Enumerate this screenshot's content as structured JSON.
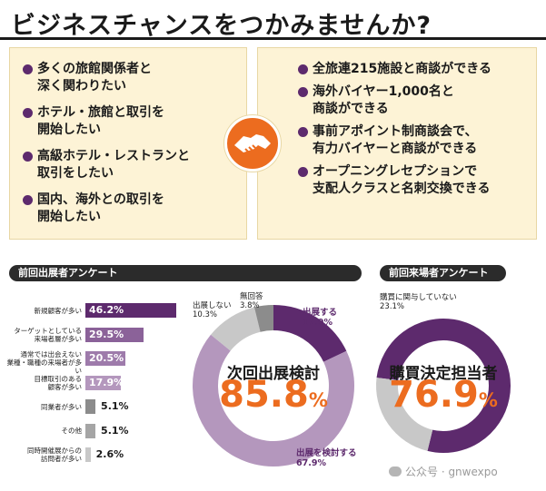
{
  "title": "ビジネスチャンスをつかみませんか?",
  "left_panel": [
    [
      "多くの旅館関係者と",
      "深く関わりたい"
    ],
    [
      "ホテル・旅館と取引を",
      "開始したい"
    ],
    [
      "高級ホテル・レストランと",
      "取引をしたい"
    ],
    [
      "国内、海外との取引を",
      "開始したい"
    ]
  ],
  "right_panel": [
    [
      "全旅連215施設と商談ができる"
    ],
    [
      "海外バイヤー1,000名と",
      "商談ができる"
    ],
    [
      "事前アポイント制商談会で、",
      "有力バイヤーと商談ができる"
    ],
    [
      "オープニングレセプションで",
      "支配人クラスと名刺交換できる"
    ]
  ],
  "icons": {
    "center": "handshake-icon",
    "bullet": "dot-icon",
    "watermark": "wechat-icon"
  },
  "colors": {
    "purple": "#5d2a6d",
    "mid_purple": "#8b6299",
    "light_purple": "#b497bd",
    "orange": "#ec6c1f",
    "gray": "#c8c8c8",
    "dark_gray": "#8c8c8c",
    "panel": "#fdf3d6"
  },
  "exhibitor_survey_heading": "前回出展者アンケート",
  "visitor_survey_heading": "前回来場者アンケート",
  "chart_data": [
    {
      "type": "bar",
      "orientation": "horizontal",
      "categories": [
        "新規顧客が多い",
        "ターゲットとしている来場者層が多い",
        "通常では出会えない業種・職種の来場者が多い",
        "目標取引のある顧客が多い",
        "同業者が多い",
        "その他",
        "同時開催展からの訪問者が多い"
      ],
      "category_lines": [
        [
          "新規顧客が多い"
        ],
        [
          "ターゲットとしている",
          "来場者層が多い"
        ],
        [
          "通常では出会えない",
          "業種・職種の来場者が多い"
        ],
        [
          "目標取引のある",
          "顧客が多い"
        ],
        [
          "同業者が多い"
        ],
        [
          "その他"
        ],
        [
          "同時開催展からの",
          "訪問者が多い"
        ]
      ],
      "values": [
        46.2,
        29.5,
        20.5,
        17.9,
        5.1,
        5.1,
        2.6
      ],
      "value_labels": [
        "46.2%",
        "29.5%",
        "20.5%",
        "17.9%",
        "5.1%",
        "5.1%",
        "2.6%"
      ],
      "bar_colors": [
        "#5d2a6d",
        "#8b6299",
        "#9e7bab",
        "#b497bd",
        "#8c8c8c",
        "#a5a5a5",
        "#c8c8c8"
      ],
      "xlim": [
        0,
        60
      ]
    },
    {
      "type": "pie",
      "donut": true,
      "slices": [
        {
          "label": "出展する",
          "value": 17.9,
          "value_label": "17.9%",
          "color": "#5d2a6d"
        },
        {
          "label": "出展を検討する",
          "value": 67.9,
          "value_label": "67.9%",
          "color": "#b497bd"
        },
        {
          "label": "出展しない",
          "value": 10.3,
          "value_label": "10.3%",
          "color": "#c8c8c8"
        },
        {
          "label": "無回答",
          "value": 3.8,
          "value_label": "3.8%",
          "color": "#8c8c8c"
        }
      ],
      "center_caption": "次回出展検討",
      "center_value": "85.8",
      "center_unit": "%"
    },
    {
      "type": "pie",
      "donut": true,
      "slices": [
        {
          "label": "購買決定担当者",
          "value": 76.9,
          "color": "#5d2a6d"
        },
        {
          "label": "購買に関与していない",
          "value": 23.1,
          "value_label": "23.1%",
          "color": "#c8c8c8"
        }
      ],
      "center_caption": "購買決定担当者",
      "center_value": "76.9",
      "center_unit": "%"
    }
  ],
  "watermark": "公众号 · gnwexpo"
}
